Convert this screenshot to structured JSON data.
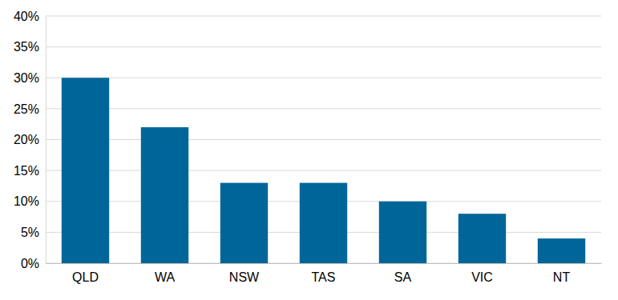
{
  "chart_data": {
    "type": "bar",
    "categories": [
      "QLD",
      "WA",
      "NSW",
      "TAS",
      "SA",
      "VIC",
      "NT"
    ],
    "values": [
      30,
      22,
      13,
      13,
      10,
      8,
      4
    ],
    "color": "#006699",
    "ylim": [
      0,
      40
    ],
    "yticks": [
      {
        "value": 0,
        "label": "0%"
      },
      {
        "value": 5,
        "label": "5%"
      },
      {
        "value": 10,
        "label": "10%"
      },
      {
        "value": 15,
        "label": "15%"
      },
      {
        "value": 20,
        "label": "20%"
      },
      {
        "value": 25,
        "label": "25%"
      },
      {
        "value": 30,
        "label": "30%"
      },
      {
        "value": 35,
        "label": "35%"
      },
      {
        "value": 40,
        "label": "40%"
      }
    ],
    "grid": true
  }
}
